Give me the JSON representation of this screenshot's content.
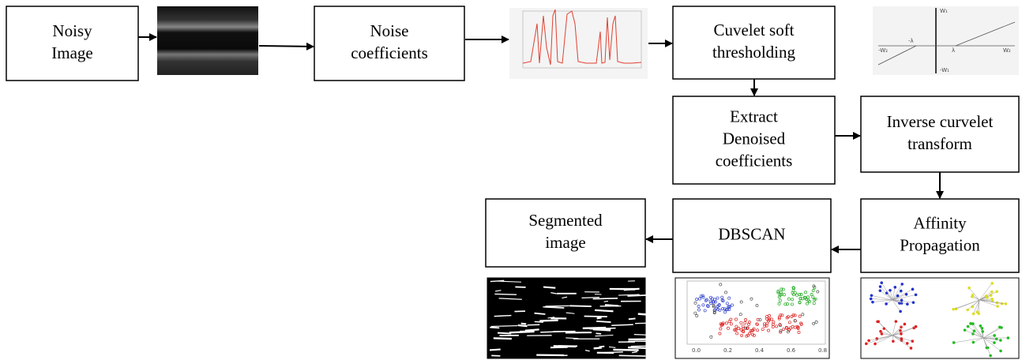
{
  "nodes": [
    {
      "lines": [
        "Noisy",
        "Image"
      ]
    },
    {
      "lines": [
        "Noise",
        "coefficients"
      ]
    },
    {
      "lines": [
        "Cuvelet soft",
        "thresholding"
      ]
    },
    {
      "lines": [
        "Extract",
        "Denoised",
        "coefficients"
      ]
    },
    {
      "lines": [
        "Inverse curvelet",
        "transform"
      ]
    },
    {
      "lines": [
        "Affinity",
        "Propagation"
      ]
    },
    {
      "lines": [
        "DBSCAN"
      ]
    },
    {
      "lines": [
        "Segmented",
        "image"
      ]
    }
  ],
  "threshold_plot": {
    "labels": [
      "W₁",
      "-W₁",
      "-λ",
      "λ",
      "-W₂",
      "W₂"
    ]
  },
  "scatter_plot": {
    "ticks": [
      "0.0",
      "0.2",
      "0.4",
      "0.6",
      "0.8"
    ]
  }
}
